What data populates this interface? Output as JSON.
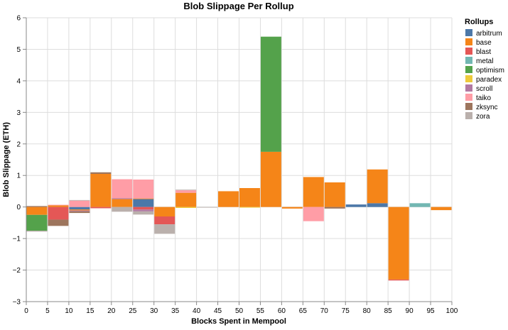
{
  "chart_data": {
    "type": "bar",
    "stacked": true,
    "title": "Blob Slippage Per Rollup",
    "xlabel": "Blocks Spent in Mempool",
    "ylabel": "Blob Slippage (ETH)",
    "xlim": [
      0,
      100
    ],
    "ylim": [
      -3,
      6
    ],
    "x_ticks": [
      0,
      5,
      10,
      15,
      20,
      25,
      30,
      35,
      40,
      45,
      50,
      55,
      60,
      65,
      70,
      75,
      80,
      85,
      90,
      95,
      100
    ],
    "y_ticks": [
      -3,
      -2,
      -1,
      0,
      1,
      2,
      3,
      4,
      5,
      6
    ],
    "grid": true,
    "legend_title": "Rollups",
    "legend_position": "right",
    "bin_width": 5,
    "series": [
      {
        "name": "arbitrum",
        "color": "#4c78a8",
        "bins": [
          10,
          25,
          75,
          80
        ],
        "values": [
          -0.08,
          0.25,
          0.08,
          0.12
        ]
      },
      {
        "name": "base",
        "color": "#f58518",
        "bins": [
          0,
          5,
          10,
          15,
          20,
          25,
          30,
          35,
          45,
          50,
          55,
          60,
          65,
          70,
          80,
          85,
          95
        ],
        "values": [
          -0.25,
          0.05,
          -0.03,
          1.05,
          0.25,
          0.02,
          -0.3,
          0.45,
          0.5,
          0.6,
          1.75,
          -0.05,
          0.95,
          0.78,
          1.07,
          -2.3,
          -0.1
        ]
      },
      {
        "name": "blast",
        "color": "#e45756",
        "bins": [
          5,
          15,
          25,
          30,
          85
        ],
        "values": [
          -0.4,
          -0.04,
          -0.08,
          -0.25,
          -0.03
        ]
      },
      {
        "name": "metal",
        "color": "#72b7b2",
        "bins": [
          90
        ],
        "values": [
          0.12
        ]
      },
      {
        "name": "optimism",
        "color": "#54a24b",
        "bins": [
          0,
          55
        ],
        "values": [
          -0.5,
          3.65
        ]
      },
      {
        "name": "paradex",
        "color": "#eeca3b",
        "bins": [
          35,
          50
        ],
        "values": [
          -0.03,
          -0.02
        ]
      },
      {
        "name": "scroll",
        "color": "#b279a2",
        "bins": [
          10,
          20,
          25
        ],
        "values": [
          -0.03,
          0.03,
          -0.06
        ]
      },
      {
        "name": "taiko",
        "color": "#ff9da6",
        "bins": [
          5,
          10,
          20,
          25,
          35,
          65
        ],
        "values": [
          0.02,
          0.2,
          0.6,
          0.6,
          0.08,
          -0.45
        ]
      },
      {
        "name": "zksync",
        "color": "#9d755d",
        "bins": [
          0,
          5,
          10,
          15,
          70
        ],
        "values": [
          0.03,
          -0.2,
          -0.05,
          0.05,
          -0.05
        ]
      },
      {
        "name": "zora",
        "color": "#bab0ac",
        "bins": [
          0,
          10,
          20,
          25,
          30,
          35,
          40
        ],
        "values": [
          -0.03,
          0.02,
          -0.15,
          -0.1,
          -0.3,
          0.02,
          -0.02
        ]
      }
    ]
  }
}
